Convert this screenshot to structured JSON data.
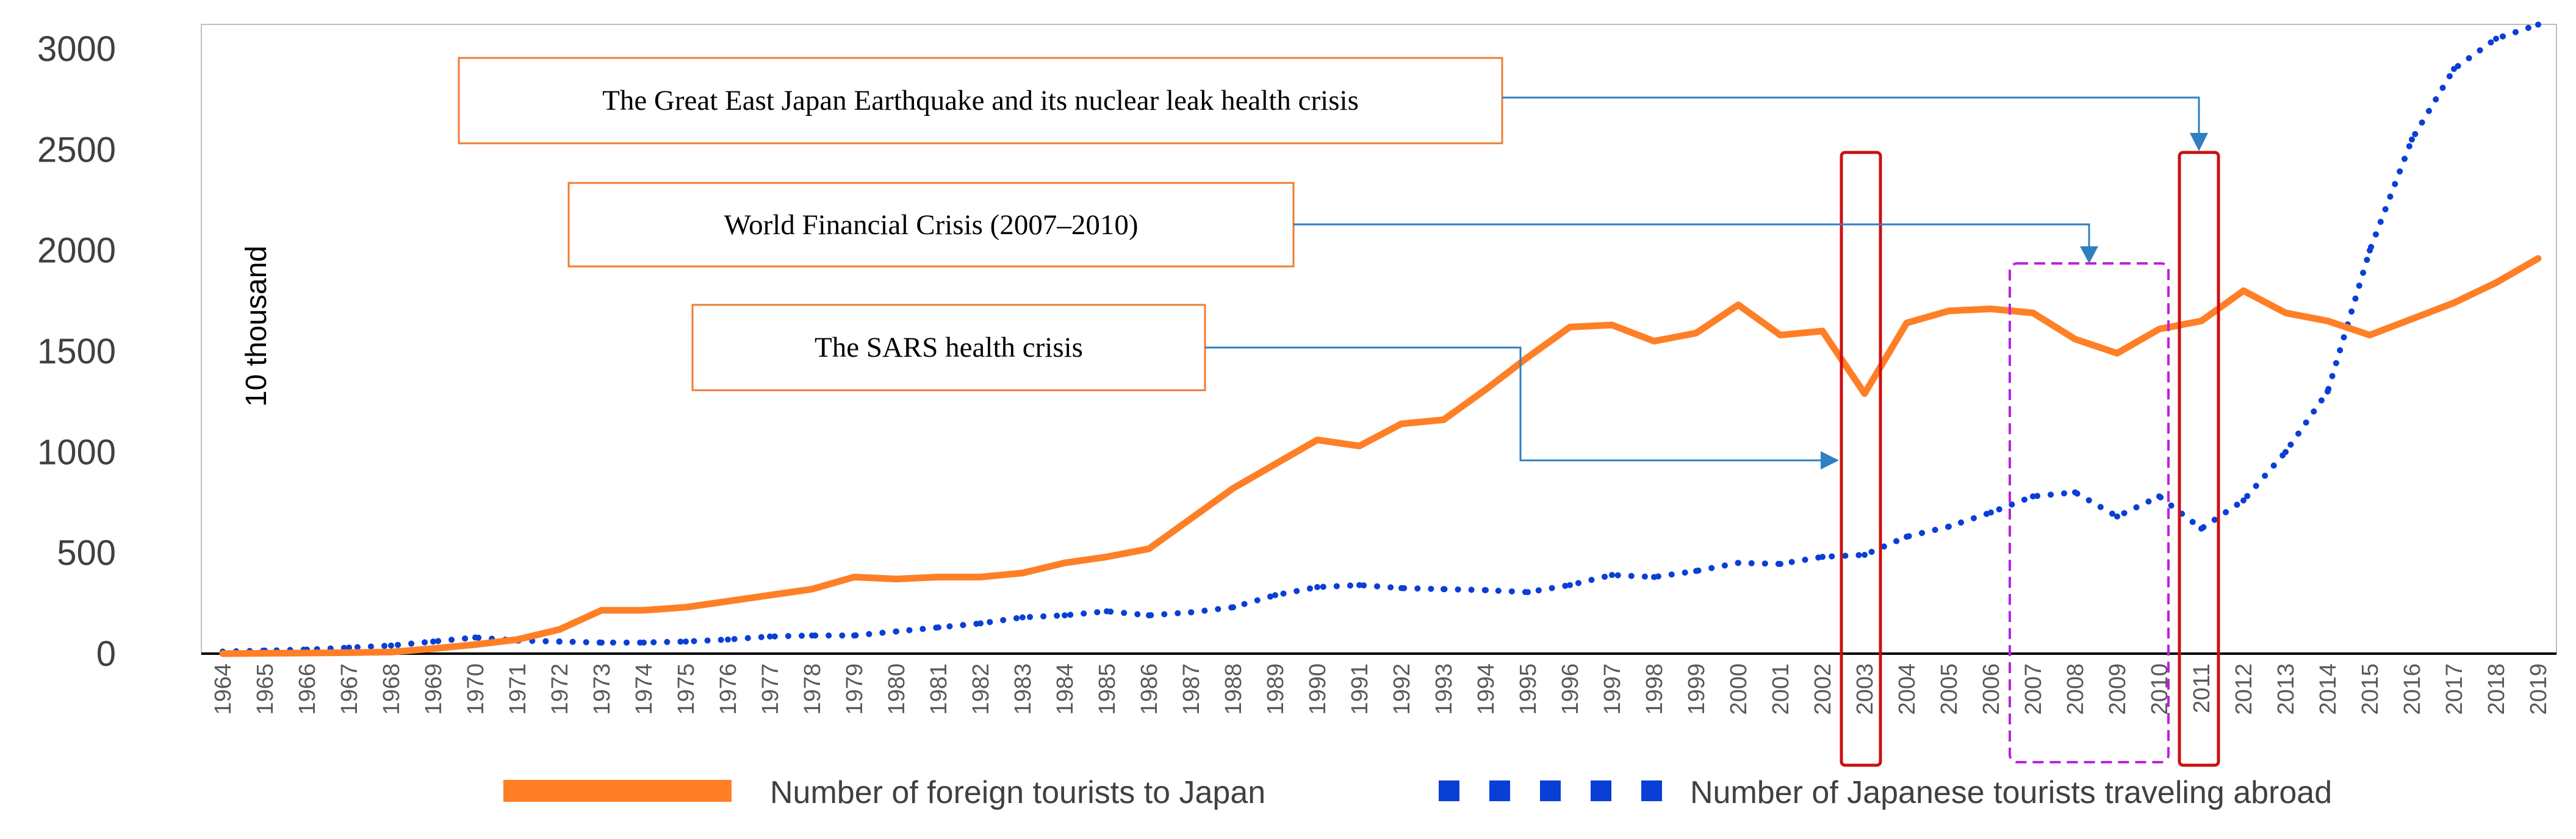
{
  "chart_data": {
    "type": "line",
    "title": "",
    "xlabel": "",
    "ylabel": "10 thousand",
    "ylim": [
      0,
      3000
    ],
    "yticks": [
      "0",
      "500",
      "1000",
      "1500",
      "2000",
      "2500",
      "3000"
    ],
    "grid": false,
    "legend_position": "bottom",
    "categories": [
      "1964",
      "1965",
      "1966",
      "1967",
      "1968",
      "1969",
      "1970",
      "1971",
      "1972",
      "1973",
      "1974",
      "1975",
      "1976",
      "1977",
      "1978",
      "1979",
      "1980",
      "1981",
      "1982",
      "1983",
      "1984",
      "1985",
      "1986",
      "1987",
      "1988",
      "1989",
      "1990",
      "1991",
      "1992",
      "1993",
      "1994",
      "1995",
      "1996",
      "1997",
      "1998",
      "1999",
      "2000",
      "2001",
      "2002",
      "2003",
      "2004",
      "2005",
      "2006",
      "2007",
      "2008",
      "2009",
      "2010",
      "2011",
      "2012",
      "2013",
      "2014",
      "2015",
      "2016",
      "2017",
      "2018",
      "2019"
    ],
    "series": [
      {
        "name": "Number of foreign tourists to Japan",
        "color": "#ff7f27",
        "style": "solid",
        "values": [
          0,
          2,
          3,
          5,
          8,
          25,
          45,
          70,
          120,
          215,
          215,
          230,
          260,
          290,
          320,
          380,
          370,
          380,
          380,
          400,
          450,
          480,
          520,
          670,
          820,
          940,
          1060,
          1030,
          1140,
          1160,
          1310,
          1470,
          1620,
          1630,
          1550,
          1590,
          1730,
          1580,
          1600,
          1290,
          1640,
          1700,
          1710,
          1690,
          1560,
          1490,
          1610,
          1650,
          1800,
          1690,
          1650,
          1580,
          1660,
          1740,
          1840,
          1960
        ]
      },
      {
        "name": "Number of Japanese tourists traveling abroad",
        "color": "#0a3fd6",
        "style": "dotted",
        "values": [
          10,
          15,
          20,
          30,
          40,
          60,
          80,
          65,
          60,
          55,
          55,
          60,
          70,
          85,
          90,
          90,
          110,
          130,
          150,
          180,
          190,
          210,
          190,
          205,
          230,
          290,
          330,
          340,
          325,
          320,
          315,
          305,
          340,
          390,
          380,
          410,
          450,
          445,
          480,
          490,
          580,
          630,
          700,
          780,
          800,
          680,
          780,
          620,
          760,
          1000,
          1300,
          2000,
          2550,
          2900,
          3050,
          3120
        ]
      }
    ],
    "annotations": [
      {
        "text": "The Great East Japan Earthquake and its nuclear leak health crisis",
        "target": "2011"
      },
      {
        "text": "World Financial Crisis (2007–2010)",
        "target": "2007–2010"
      },
      {
        "text": "The SARS health crisis",
        "target": "2003"
      }
    ]
  },
  "colors": {
    "foreign": "#ff7f27",
    "japanese": "#0a3fd6",
    "highlight_red": "#cc1010",
    "highlight_purple": "#c020e0",
    "arrow": "#2f7fc1",
    "axis": "#000000",
    "annotation_border": "#ed7d31"
  }
}
